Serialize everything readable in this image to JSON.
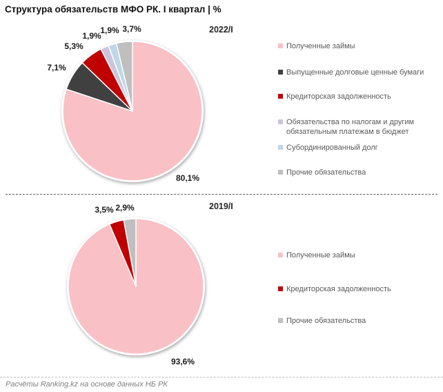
{
  "header": {
    "title": "Структура обязательств МФО РК. I квартал | %"
  },
  "chart_data": [
    {
      "type": "pie",
      "title": "2022/I",
      "unit": "%",
      "legend_position": "right",
      "labels": [
        "Полученные займы",
        "Выпущенные долговые ценные бумаги",
        "Кредиторская задолженность",
        "Обязательства по налогам и другим обязательным платежам в бюджет",
        "Субординированный долг",
        "Прочие обязательства"
      ],
      "values": [
        80.1,
        7.1,
        5.3,
        1.9,
        1.9,
        3.7
      ],
      "value_labels": [
        "80,1%",
        "7,1%",
        "5,3%",
        "1,9%",
        "1,9%",
        "3,7%"
      ],
      "colors": [
        "#F9C0C5",
        "#404040",
        "#C00000",
        "#CCC4DD",
        "#BDD7E7",
        "#BFBFBF"
      ]
    },
    {
      "type": "pie",
      "title": "2019/I",
      "unit": "%",
      "legend_position": "right",
      "labels": [
        "Полученные займы",
        "Кредиторская задолженность",
        "Прочие обязательства"
      ],
      "values": [
        93.6,
        3.5,
        2.9
      ],
      "value_labels": [
        "93,6%",
        "3,5%",
        "2,9%"
      ],
      "colors": [
        "#F9C0C5",
        "#C00000",
        "#BFBFBF"
      ]
    }
  ],
  "footer": {
    "source": "Расчёты Ranking.kz на основе данных НБ РК"
  }
}
